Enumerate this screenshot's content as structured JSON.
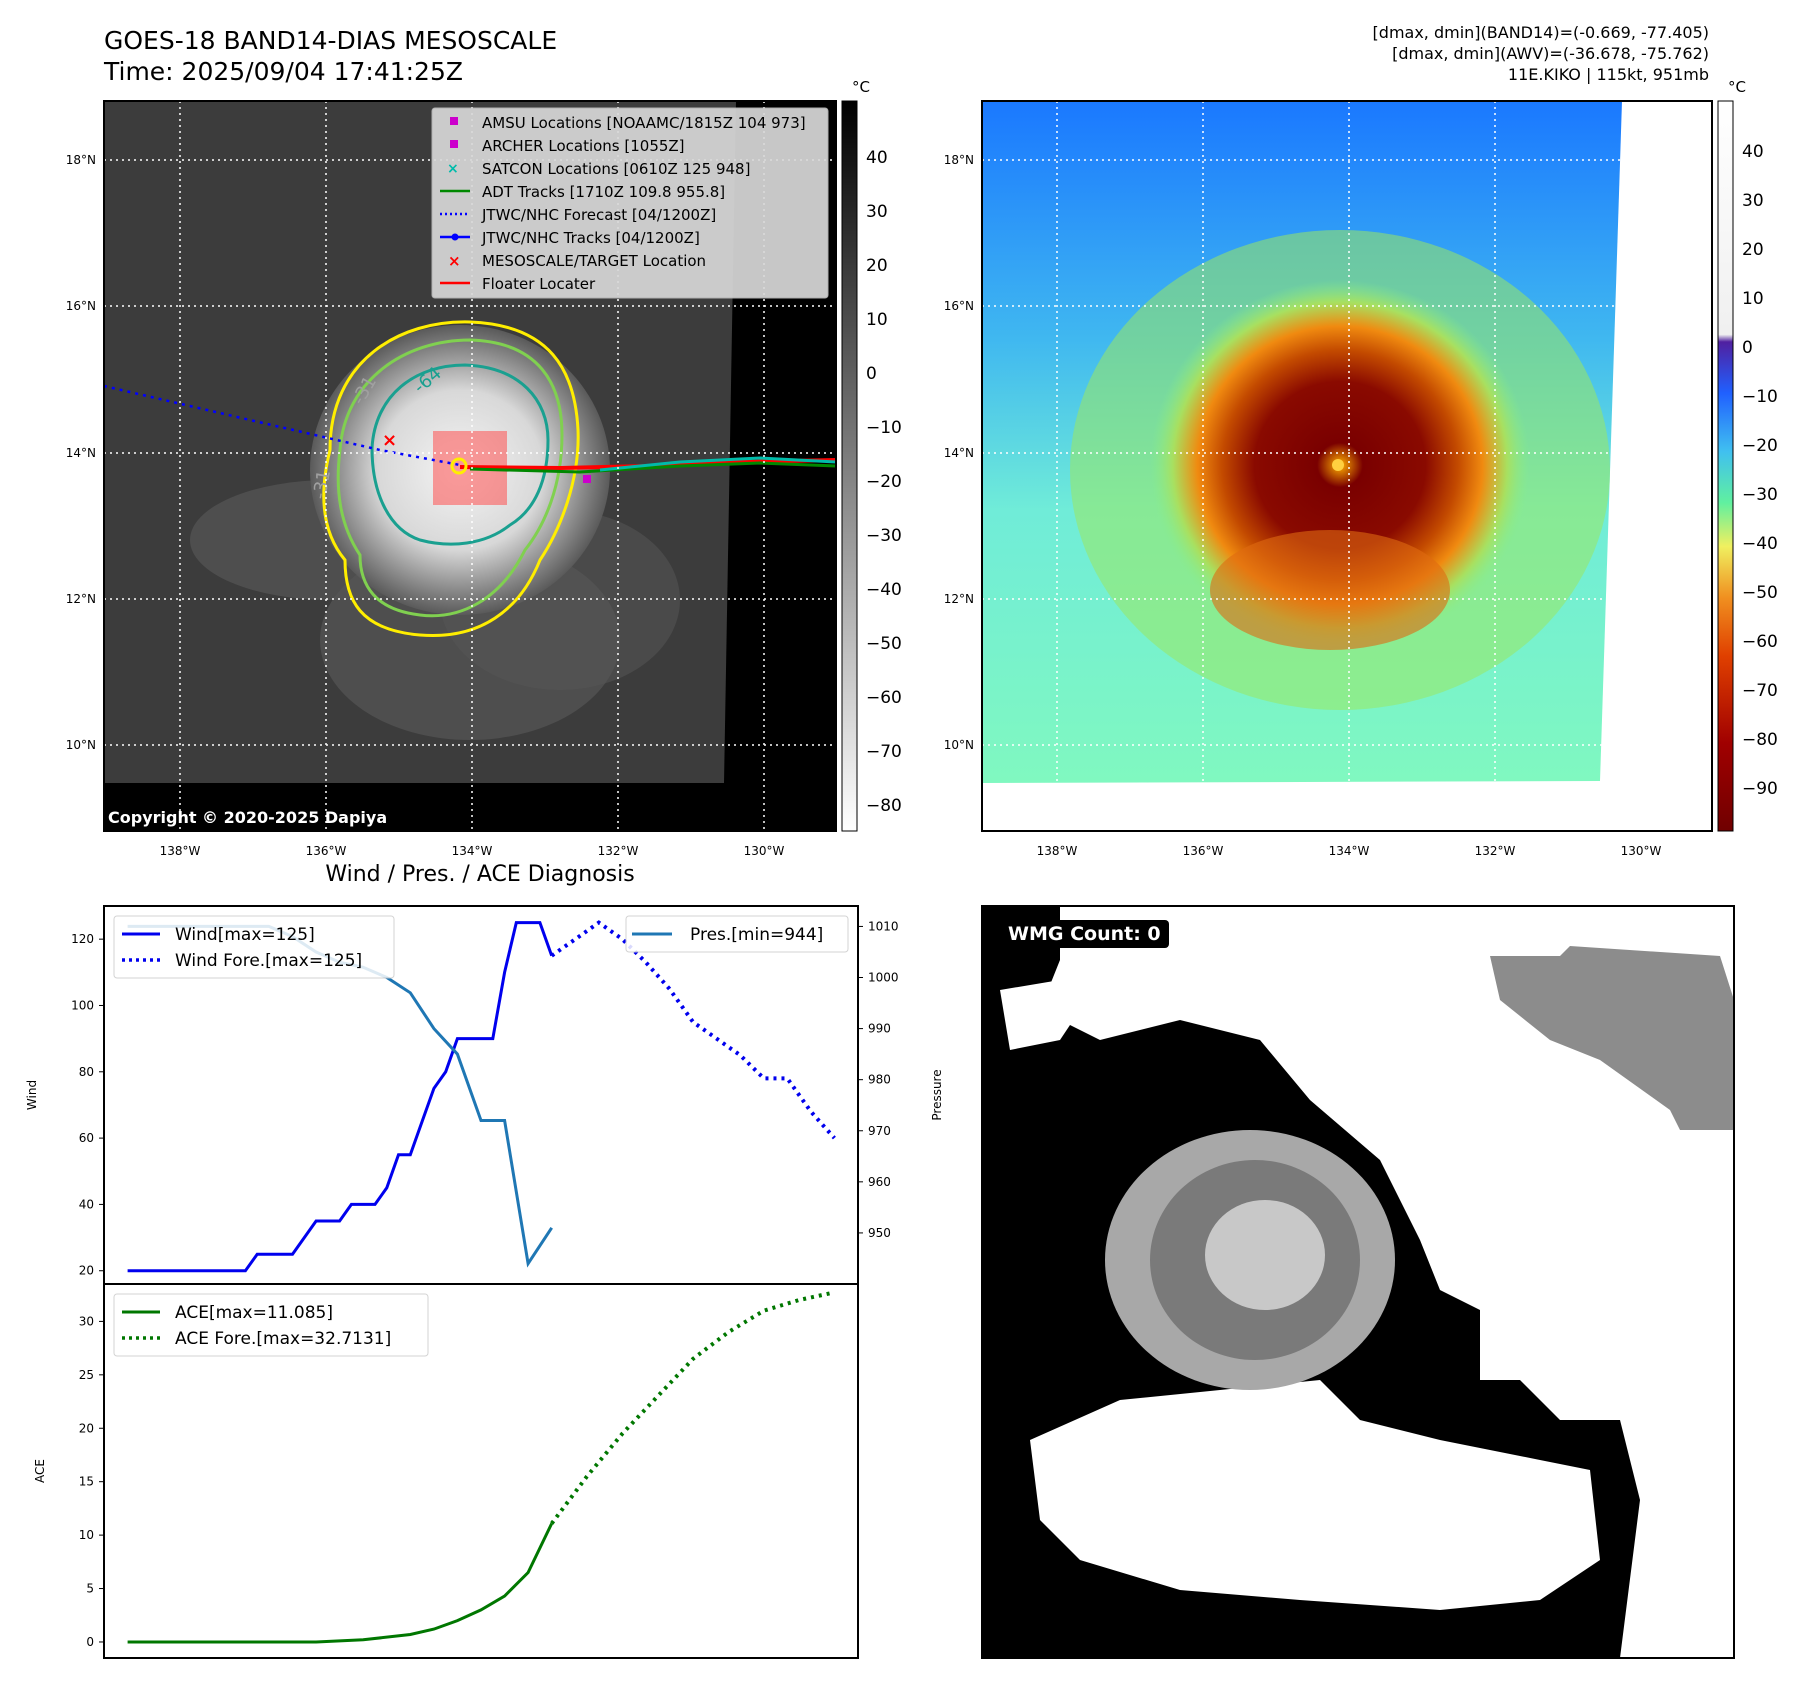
{
  "header": {
    "title_line1": "GOES-18 BAND14-DIAS MESOSCALE",
    "title_line2": "Time: 2025/09/04 17:41:25Z",
    "info_line1": "[dmax, dmin](BAND14)=(-0.669, -77.405)",
    "info_line2": "[dmax, dmin](AWV)=(-36.678, -75.762)",
    "info_line3": "11E.KIKO | 115kt, 951mb",
    "copyright": "Copyright © 2020-2025 Dapiya"
  },
  "map": {
    "lat_labels": [
      "18°N",
      "16°N",
      "14°N",
      "12°N",
      "10°N"
    ],
    "lon_labels": [
      "138°W",
      "136°W",
      "134°W",
      "132°W",
      "130°W"
    ],
    "contour_labels": [
      "-64",
      "-31",
      "-31"
    ],
    "legend": [
      "AMSU Locations [NOAAMC/1815Z 104 973]",
      "ARCHER Locations [1055Z]",
      "SATCON Locations [0610Z 125 948]",
      "ADT Tracks [1710Z 109.8 955.8]",
      "JTWC/NHC Forecast [04/1200Z]",
      "JTWC/NHC Tracks [04/1200Z]",
      "MESOSCALE/TARGET Location",
      "Floater Locater"
    ],
    "colorbar_unit": "°C",
    "gray_colorbar_ticks": [
      "40",
      "30",
      "20",
      "10",
      "0",
      "−10",
      "−20",
      "−30",
      "−40",
      "−50",
      "−60",
      "−70",
      "−80"
    ],
    "color_colorbar_ticks": [
      "40",
      "30",
      "20",
      "10",
      "0",
      "−10",
      "−20",
      "−30",
      "−40",
      "−50",
      "−60",
      "−70",
      "−80",
      "−90"
    ]
  },
  "wmg": {
    "label": "WMG Count: 0"
  },
  "colors": {
    "wind": "#0000ee",
    "pressure": "#1f77b4",
    "ace": "#007700",
    "track_red": "#ff0000"
  },
  "chart_data": [
    {
      "type": "line",
      "title": "Wind / Pres. / ACE Diagnosis",
      "ylabel": "Wind",
      "ylabel_right": "Pressure",
      "ylim": [
        16,
        130
      ],
      "ylim_right": [
        940,
        1014
      ],
      "yticks": [
        20,
        40,
        60,
        80,
        100,
        120
      ],
      "yticks_right": [
        950,
        960,
        970,
        980,
        990,
        1000,
        1010
      ],
      "series": [
        {
          "name": "Wind[max=125]",
          "style": "solid",
          "x": [
            0,
            1,
            2,
            3,
            4,
            5,
            6,
            7,
            8,
            9,
            10,
            11,
            12,
            13,
            14,
            15,
            16,
            17,
            18,
            19,
            20,
            21,
            22,
            23,
            24,
            25,
            26,
            27,
            28,
            29,
            30,
            31,
            32,
            33,
            34,
            35,
            36
          ],
          "values": [
            20,
            20,
            20,
            20,
            20,
            20,
            20,
            20,
            20,
            20,
            20,
            25,
            25,
            25,
            25,
            30,
            35,
            35,
            35,
            40,
            40,
            40,
            45,
            55,
            55,
            65,
            75,
            80,
            90,
            90,
            90,
            90,
            110,
            125,
            125,
            125,
            115
          ]
        },
        {
          "name": "Wind Fore.[max=125]",
          "style": "dotted",
          "x": [
            36,
            38,
            40,
            42,
            44,
            46,
            48,
            50,
            52,
            54,
            56,
            58,
            60
          ],
          "values": [
            115,
            120,
            125,
            120,
            113,
            105,
            95,
            90,
            85,
            78,
            78,
            68,
            60
          ]
        },
        {
          "name": "Pres.[min=944]",
          "style": "solid",
          "axis": "right",
          "x": [
            0,
            2,
            4,
            6,
            8,
            10,
            12,
            14,
            16,
            18,
            20,
            22,
            24,
            26,
            28,
            30,
            32,
            34,
            36
          ],
          "values": [
            1010,
            1010,
            1010,
            1010,
            1010,
            1010,
            1010,
            1008,
            1005,
            1003,
            1002,
            1000,
            997,
            990,
            985,
            972,
            972,
            944,
            951
          ]
        }
      ]
    },
    {
      "type": "line",
      "ylabel": "ACE",
      "ylim": [
        -1.5,
        33.5
      ],
      "yticks": [
        0,
        5,
        10,
        15,
        20,
        25,
        30
      ],
      "series": [
        {
          "name": "ACE[max=11.085]",
          "style": "solid",
          "x": [
            0,
            4,
            8,
            12,
            16,
            20,
            24,
            26,
            28,
            30,
            32,
            34,
            36
          ],
          "values": [
            0,
            0,
            0,
            0,
            0,
            0.2,
            0.7,
            1.2,
            2,
            3,
            4.3,
            6.5,
            11.085
          ]
        },
        {
          "name": "ACE Fore.[max=32.7131]",
          "style": "dotted",
          "x": [
            36,
            39,
            42,
            45,
            48,
            51,
            54,
            57,
            60
          ],
          "values": [
            11.085,
            15.5,
            19.5,
            23,
            26.5,
            29,
            31,
            32,
            32.7131
          ]
        }
      ]
    }
  ]
}
